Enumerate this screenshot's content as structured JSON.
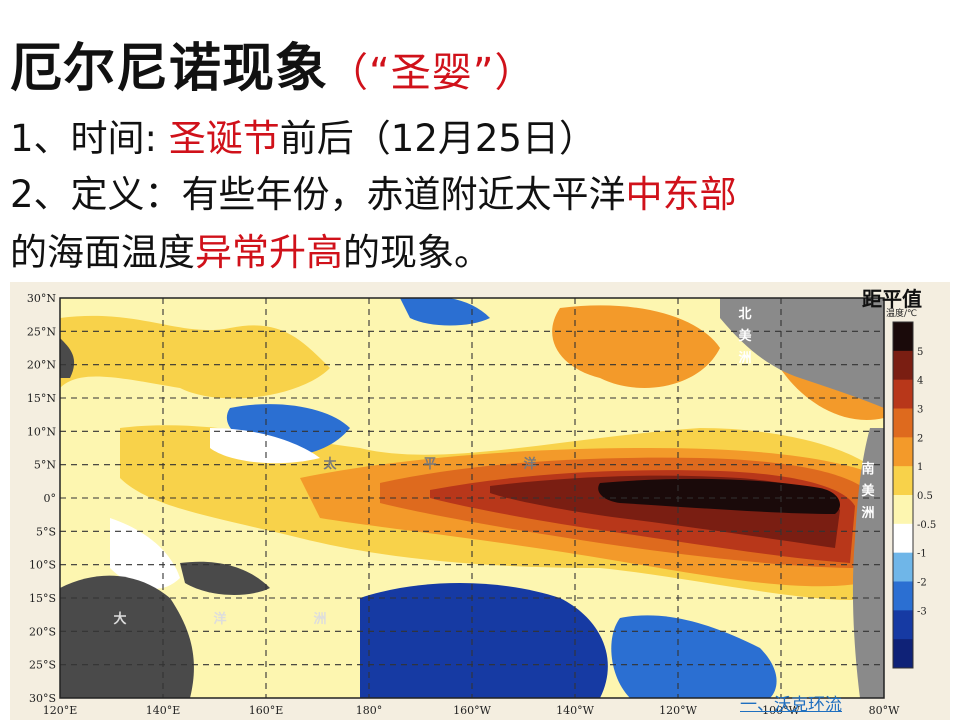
{
  "title": {
    "main": "厄尔尼诺现象",
    "sub": "（“圣婴”）"
  },
  "line1": {
    "prefix": "1、时间: ",
    "highlight": "圣诞节",
    "suffix": "前后（12月25日）"
  },
  "line2": {
    "prefix": "2、定义：有些年份，赤道附近太平洋",
    "highlight": "中东部"
  },
  "line3": {
    "prefix": "的海面温度",
    "highlight": "异常升高",
    "suffix": "的现象。"
  },
  "map": {
    "legend_title": "距平值",
    "unit_label": "温度/℃",
    "lat_labels": [
      "30°N",
      "25°N",
      "20°N",
      "15°N",
      "10°N",
      "5°N",
      "0°",
      "5°S",
      "10°S",
      "15°S",
      "20°S",
      "25°S",
      "30°S"
    ],
    "lon_labels": [
      "120°E",
      "140°E",
      "160°E",
      "180°",
      "160°W",
      "140°W",
      "120°W",
      "100°W",
      "80°W"
    ],
    "legend_ticks": [
      "5",
      "4",
      "3",
      "2",
      "1",
      "0.5",
      "-0.5",
      "-1",
      "-2",
      "-3"
    ],
    "legend_colors": [
      "#1a0a0a",
      "#7a1e12",
      "#b8371a",
      "#de6a1e",
      "#f39a2a",
      "#f8d24a",
      "#fdf6b0",
      "#ffffff",
      "#6fb6e8",
      "#2b6fd2",
      "#163aa3",
      "#0f2277"
    ],
    "continent_labels": [
      {
        "text": "北美洲"
      },
      {
        "text": "南美洲"
      },
      {
        "text": "大洋洲"
      },
      {
        "text": "太平洋"
      }
    ],
    "link": "一、沃克环流"
  }
}
